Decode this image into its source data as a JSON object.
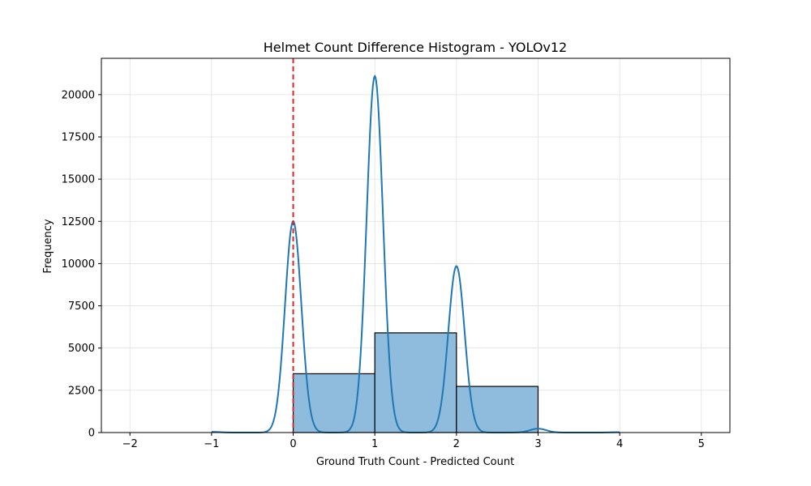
{
  "chart_data": {
    "type": "bar",
    "title": "Helmet Count Difference Histogram - YOLOv12",
    "xlabel": "Ground Truth Count - Predicted Count",
    "ylabel": "Frequency",
    "xlim": [
      -2.35,
      5.35
    ],
    "ylim": [
      0,
      22150
    ],
    "x_ticks": [
      -2,
      -1,
      0,
      1,
      2,
      3,
      4,
      5
    ],
    "y_ticks": [
      0,
      2500,
      5000,
      7500,
      10000,
      12500,
      15000,
      17500,
      20000
    ],
    "grid": true,
    "bins": [
      {
        "start": 0,
        "end": 1,
        "count": 3480
      },
      {
        "start": 1,
        "end": 2,
        "count": 5900
      },
      {
        "start": 2,
        "end": 3,
        "count": 2730
      }
    ],
    "kde": {
      "name": "",
      "components": [
        {
          "mean": -1.0,
          "height": 40,
          "sd": 0.1
        },
        {
          "mean": 0.0,
          "height": 12500,
          "sd": 0.1
        },
        {
          "mean": 1.0,
          "height": 21100,
          "sd": 0.1
        },
        {
          "mean": 2.0,
          "height": 9850,
          "sd": 0.1
        },
        {
          "mean": 3.0,
          "height": 230,
          "sd": 0.1
        },
        {
          "mean": 4.0,
          "height": 20,
          "sd": 0.1
        }
      ],
      "x_range": [
        -1.0,
        4.0
      ]
    },
    "reference_line": {
      "x": 0,
      "style": "dashed"
    },
    "colors": {
      "bar_fill": "#8fbcdc",
      "bar_edge": "#000000",
      "kde_line": "#1f77b4",
      "reference_line": "#d62728",
      "grid": "#e0e0e0"
    }
  }
}
